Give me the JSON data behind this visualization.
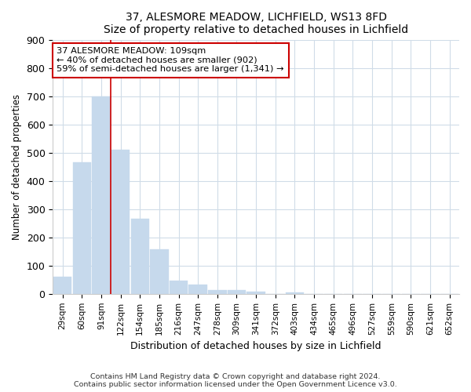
{
  "title1": "37, ALESMORE MEADOW, LICHFIELD, WS13 8FD",
  "title2": "Size of property relative to detached houses in Lichfield",
  "xlabel": "Distribution of detached houses by size in Lichfield",
  "ylabel": "Number of detached properties",
  "categories": [
    "29sqm",
    "60sqm",
    "91sqm",
    "122sqm",
    "154sqm",
    "185sqm",
    "216sqm",
    "247sqm",
    "278sqm",
    "309sqm",
    "341sqm",
    "372sqm",
    "403sqm",
    "434sqm",
    "465sqm",
    "496sqm",
    "527sqm",
    "559sqm",
    "590sqm",
    "621sqm",
    "652sqm"
  ],
  "values": [
    62,
    465,
    700,
    510,
    265,
    158,
    47,
    32,
    15,
    13,
    8,
    0,
    5,
    0,
    0,
    0,
    0,
    0,
    0,
    0,
    0
  ],
  "bar_color": "#c6d9ec",
  "bar_edge_color": "#c6d9ec",
  "vline_x_idx": 2.5,
  "vline_color": "#cc0000",
  "annotation_text": "37 ALESMORE MEADOW: 109sqm\n← 40% of detached houses are smaller (902)\n59% of semi-detached houses are larger (1,341) →",
  "annotation_box_color": "#ffffff",
  "annotation_box_edge": "#cc0000",
  "ylim": [
    0,
    900
  ],
  "yticks": [
    0,
    100,
    200,
    300,
    400,
    500,
    600,
    700,
    800,
    900
  ],
  "footer": "Contains HM Land Registry data © Crown copyright and database right 2024.\nContains public sector information licensed under the Open Government Licence v3.0.",
  "bg_color": "#ffffff",
  "plot_bg_color": "#ffffff",
  "grid_color": "#d0dce8"
}
